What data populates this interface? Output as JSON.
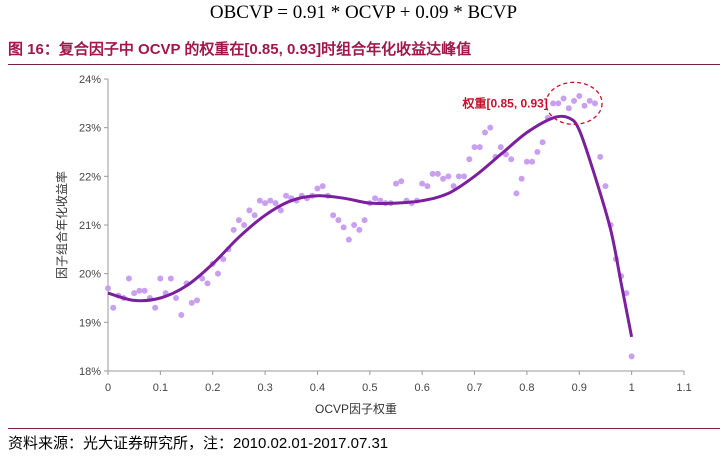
{
  "formula": "OBCVP = 0.91 * OCVP + 0.09 * BCVP",
  "figure_title": "图 16：复合因子中 OCVP 的权重在[0.85, 0.93]时组合年化收益达峰值",
  "source_note": "资料来源：光大证券研究所，注：2010.02.01-2017.07.31",
  "colors": {
    "title": "#a0184b",
    "curve": "#7b1f9e",
    "points": "#c9a0f0",
    "annotation": "#c8102e",
    "rule": "#7a1f3e"
  },
  "chart_data": {
    "type": "scatter",
    "xlabel": "OCVP因子权重",
    "ylabel": "因子组合年化收益率",
    "xlim": [
      0,
      1.1
    ],
    "ylim": [
      18,
      24
    ],
    "xticks": [
      0,
      0.1,
      0.2,
      0.3,
      0.4,
      0.5,
      0.6,
      0.7,
      0.8,
      0.9,
      1,
      1.1
    ],
    "xtick_labels": [
      "0",
      "0.1",
      "0.2",
      "0.3",
      "0.4",
      "0.5",
      "0.6",
      "0.7",
      "0.8",
      "0.9",
      "1",
      "1.1"
    ],
    "yticks": [
      18,
      19,
      20,
      21,
      22,
      23,
      24
    ],
    "ytick_labels": [
      "18%",
      "19%",
      "20%",
      "21%",
      "22%",
      "23%",
      "24%"
    ],
    "grid": false,
    "annotation": "权重[0.85, 0.93]",
    "series": [
      {
        "kind": "points",
        "x": [
          0,
          0.01,
          0.02,
          0.03,
          0.04,
          0.05,
          0.06,
          0.07,
          0.08,
          0.09,
          0.1,
          0.11,
          0.12,
          0.13,
          0.14,
          0.15,
          0.16,
          0.17,
          0.18,
          0.19,
          0.2,
          0.21,
          0.22,
          0.23,
          0.24,
          0.25,
          0.26,
          0.27,
          0.28,
          0.29,
          0.3,
          0.31,
          0.32,
          0.33,
          0.34,
          0.35,
          0.36,
          0.37,
          0.38,
          0.39,
          0.4,
          0.41,
          0.42,
          0.43,
          0.44,
          0.45,
          0.46,
          0.47,
          0.48,
          0.49,
          0.5,
          0.51,
          0.52,
          0.53,
          0.54,
          0.55,
          0.56,
          0.57,
          0.58,
          0.59,
          0.6,
          0.61,
          0.62,
          0.63,
          0.64,
          0.65,
          0.66,
          0.67,
          0.68,
          0.69,
          0.7,
          0.71,
          0.72,
          0.73,
          0.74,
          0.75,
          0.76,
          0.77,
          0.78,
          0.79,
          0.8,
          0.81,
          0.82,
          0.83,
          0.84,
          0.85,
          0.86,
          0.87,
          0.88,
          0.89,
          0.9,
          0.91,
          0.92,
          0.93,
          0.94,
          0.95,
          0.96,
          0.97,
          0.98,
          0.99,
          1
        ],
        "y": [
          19.7,
          19.3,
          19.55,
          19.5,
          19.9,
          19.6,
          19.65,
          19.65,
          19.5,
          19.3,
          19.9,
          19.6,
          19.9,
          19.5,
          19.15,
          19.8,
          19.4,
          19.45,
          19.9,
          19.8,
          20.2,
          20.0,
          20.3,
          20.5,
          20.9,
          21.1,
          21.0,
          21.3,
          21.2,
          21.5,
          21.45,
          21.5,
          21.45,
          21.3,
          21.6,
          21.55,
          21.5,
          21.6,
          21.55,
          21.6,
          21.75,
          21.8,
          21.6,
          21.2,
          21.1,
          20.95,
          20.7,
          21.0,
          20.9,
          21.1,
          21.45,
          21.55,
          21.5,
          21.45,
          21.45,
          21.85,
          21.9,
          21.5,
          21.45,
          21.5,
          21.85,
          21.8,
          22.05,
          22.05,
          21.95,
          22.0,
          21.8,
          22.0,
          22.0,
          22.35,
          22.6,
          22.6,
          22.9,
          23.0,
          22.4,
          22.6,
          22.45,
          22.35,
          21.65,
          21.95,
          22.3,
          22.3,
          22.5,
          22.7,
          23.2,
          23.5,
          23.5,
          23.6,
          23.4,
          23.55,
          23.65,
          23.45,
          23.55,
          23.5,
          22.4,
          21.8,
          21.0,
          20.3,
          19.95,
          19.6,
          18.3
        ]
      },
      {
        "kind": "trend",
        "x": [
          0,
          0.05,
          0.1,
          0.15,
          0.2,
          0.25,
          0.3,
          0.35,
          0.4,
          0.45,
          0.5,
          0.55,
          0.6,
          0.65,
          0.7,
          0.75,
          0.8,
          0.85,
          0.88,
          0.9,
          0.93,
          0.96,
          0.98,
          1
        ],
        "y": [
          19.6,
          19.45,
          19.5,
          19.75,
          20.2,
          20.75,
          21.2,
          21.5,
          21.6,
          21.55,
          21.45,
          21.45,
          21.5,
          21.65,
          22.0,
          22.45,
          22.9,
          23.2,
          23.2,
          22.95,
          22.0,
          20.9,
          19.8,
          18.7
        ]
      }
    ]
  }
}
